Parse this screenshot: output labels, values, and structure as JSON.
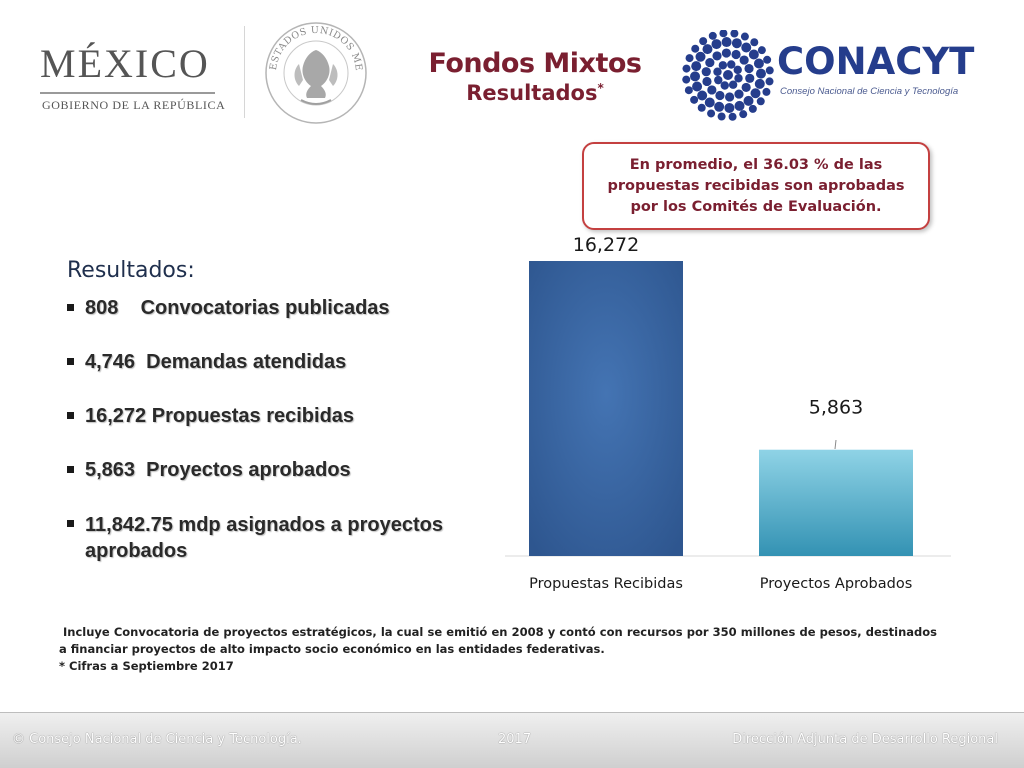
{
  "header": {
    "mexico_word": "MÉXICO",
    "mexico_sub": "GOBIERNO DE LA REPÚBLICA",
    "seal_text": "ESTADOS UNIDOS MEXICANOS",
    "title": "Fondos Mixtos",
    "subtitle": "Resultados",
    "subtitle_mark": "*",
    "conacyt_word": "CONACYT",
    "conacyt_sub": "Consejo Nacional de Ciencia y Tecnología",
    "colors": {
      "title": "#7a1f30",
      "conacyt": "#253d8c"
    }
  },
  "callout": {
    "text": "En promedio, el 36.03 % de las propuestas recibidas son aprobadas por los Comités de Evaluación."
  },
  "results": {
    "title": "Resultados:",
    "items": [
      "808    Convocatorias publicadas",
      "4,746  Demandas atendidas",
      "16,272 Propuestas recibidas",
      "5,863  Proyectos aprobados",
      " 11,842.75 mdp  asignados a proyectos aprobados"
    ]
  },
  "chart_data": {
    "type": "bar",
    "categories": [
      "Propuestas Recibidas",
      "Proyectos Aprobados"
    ],
    "values": [
      16272,
      5863
    ],
    "data_labels": [
      "16,272",
      "5,863"
    ],
    "ylim": [
      0,
      16272
    ],
    "grid": false,
    "colors": [
      "#3a63a0",
      "#4aaac4"
    ]
  },
  "footnote": {
    "line1": "Incluye Convocatoria de proyectos estratégicos, la cual se emitió en 2008 y contó con recursos por 350 millones de pesos, destinados a financiar proyectos de alto impacto socio económico en las entidades federativas.",
    "line2": "*   Cifras a Septiembre 2017"
  },
  "footer": {
    "left": "© Consejo Nacional de Ciencia y Tecnología.",
    "middle": "2017",
    "right": "Dirección Adjunta de Desarrollo Regional"
  }
}
